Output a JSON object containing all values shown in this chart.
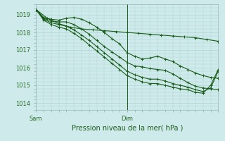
{
  "title": "Pression niveau de la mer( hPa )",
  "ylabel_values": [
    1014,
    1015,
    1016,
    1017,
    1018,
    1019
  ],
  "ylim": [
    1013.6,
    1019.6
  ],
  "xlim": [
    0,
    48
  ],
  "background_color": "#ceeaea",
  "grid_color": "#aed4d4",
  "line_color": "#1a5c1a",
  "x_ticks": [
    0,
    24,
    48
  ],
  "x_tick_labels": [
    "Sam",
    "Dim",
    ""
  ],
  "line1_x": [
    0,
    3,
    6,
    9,
    12,
    15,
    18,
    21,
    24,
    27,
    30,
    33,
    36,
    39,
    42,
    45,
    48
  ],
  "line1_y": [
    1019.3,
    1018.8,
    1018.5,
    1018.3,
    1018.2,
    1018.15,
    1018.1,
    1018.05,
    1018.0,
    1017.95,
    1017.9,
    1017.85,
    1017.8,
    1017.75,
    1017.7,
    1017.6,
    1017.5
  ],
  "line2_x": [
    0,
    2,
    4,
    6,
    8,
    10,
    12,
    14,
    16,
    18,
    20,
    22,
    24,
    26,
    28,
    30,
    32,
    34,
    36,
    38,
    40,
    42,
    44,
    46,
    48
  ],
  "line2_y": [
    1019.3,
    1018.85,
    1018.75,
    1018.7,
    1018.8,
    1018.85,
    1018.75,
    1018.55,
    1018.3,
    1018.0,
    1017.65,
    1017.35,
    1016.85,
    1016.65,
    1016.5,
    1016.55,
    1016.65,
    1016.5,
    1016.35,
    1016.1,
    1015.9,
    1015.7,
    1015.55,
    1015.45,
    1015.4
  ],
  "line3_x": [
    0,
    2,
    4,
    6,
    8,
    10,
    12,
    14,
    16,
    18,
    20,
    22,
    24,
    26,
    28,
    30,
    32,
    34,
    36,
    38,
    40,
    42,
    44,
    46,
    48
  ],
  "line3_y": [
    1019.3,
    1018.8,
    1018.65,
    1018.6,
    1018.6,
    1018.45,
    1018.2,
    1017.9,
    1017.55,
    1017.2,
    1016.9,
    1016.6,
    1016.3,
    1016.1,
    1016.05,
    1015.95,
    1015.9,
    1015.85,
    1015.65,
    1015.4,
    1015.15,
    1014.95,
    1014.85,
    1014.8,
    1014.75
  ],
  "line4_x": [
    0,
    2,
    4,
    6,
    8,
    10,
    12,
    14,
    16,
    18,
    20,
    22,
    24,
    26,
    28,
    30,
    32,
    34,
    36,
    38,
    40,
    42,
    44,
    46,
    48
  ],
  "line4_y": [
    1019.3,
    1018.75,
    1018.55,
    1018.45,
    1018.35,
    1018.15,
    1017.85,
    1017.55,
    1017.2,
    1016.85,
    1016.5,
    1016.15,
    1015.8,
    1015.6,
    1015.45,
    1015.35,
    1015.35,
    1015.25,
    1015.1,
    1015.0,
    1014.9,
    1014.75,
    1014.65,
    1014.85,
    1015.8
  ],
  "line5_x": [
    0,
    2,
    4,
    6,
    8,
    10,
    12,
    14,
    16,
    18,
    20,
    22,
    24,
    26,
    28,
    30,
    32,
    34,
    36,
    38,
    40,
    42,
    44,
    46,
    48
  ],
  "line5_y": [
    1019.3,
    1018.7,
    1018.45,
    1018.3,
    1018.2,
    1017.95,
    1017.65,
    1017.3,
    1016.95,
    1016.6,
    1016.25,
    1015.9,
    1015.55,
    1015.35,
    1015.2,
    1015.1,
    1015.1,
    1015.0,
    1014.9,
    1014.8,
    1014.75,
    1014.6,
    1014.55,
    1015.0,
    1015.9
  ],
  "vline_x": 24,
  "marker_size": 2.5,
  "linewidth": 0.8
}
